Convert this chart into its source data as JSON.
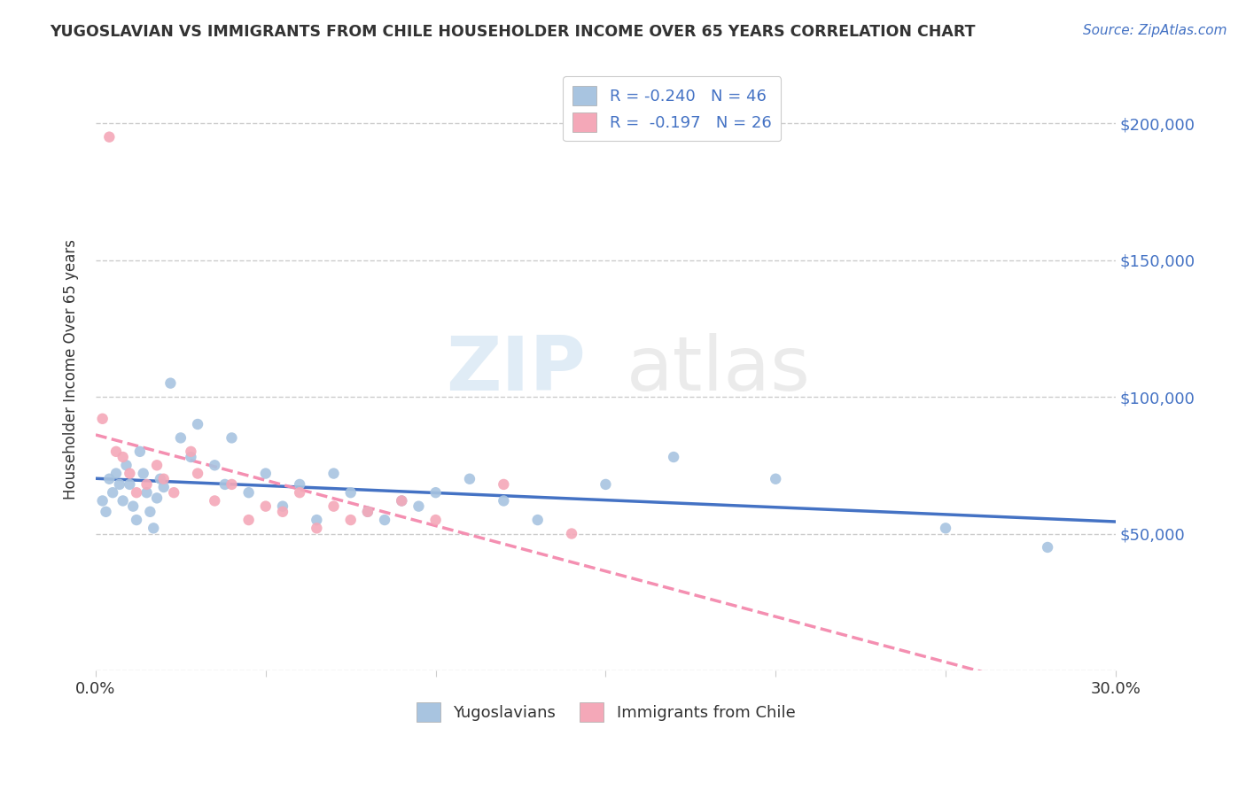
{
  "title": "YUGOSLAVIAN VS IMMIGRANTS FROM CHILE HOUSEHOLDER INCOME OVER 65 YEARS CORRELATION CHART",
  "source": "Source: ZipAtlas.com",
  "ylabel": "Householder Income Over 65 years",
  "xlim": [
    0.0,
    30.0
  ],
  "ylim": [
    0,
    220000
  ],
  "yticks": [
    0,
    50000,
    100000,
    150000,
    200000
  ],
  "blue_R": -0.24,
  "blue_N": 46,
  "pink_R": -0.197,
  "pink_N": 26,
  "legend_label_blue": "Yugoslavians",
  "legend_label_pink": "Immigrants from Chile",
  "blue_color": "#a8c4e0",
  "pink_color": "#f4a8b8",
  "blue_line_color": "#4472c4",
  "pink_line_color": "#f48fb1",
  "blue_scatter": [
    [
      0.2,
      62000
    ],
    [
      0.3,
      58000
    ],
    [
      0.4,
      70000
    ],
    [
      0.5,
      65000
    ],
    [
      0.6,
      72000
    ],
    [
      0.7,
      68000
    ],
    [
      0.8,
      62000
    ],
    [
      0.9,
      75000
    ],
    [
      1.0,
      68000
    ],
    [
      1.1,
      60000
    ],
    [
      1.2,
      55000
    ],
    [
      1.3,
      80000
    ],
    [
      1.4,
      72000
    ],
    [
      1.5,
      65000
    ],
    [
      1.6,
      58000
    ],
    [
      1.7,
      52000
    ],
    [
      1.8,
      63000
    ],
    [
      1.9,
      70000
    ],
    [
      2.0,
      67000
    ],
    [
      2.2,
      105000
    ],
    [
      2.5,
      85000
    ],
    [
      2.8,
      78000
    ],
    [
      3.0,
      90000
    ],
    [
      3.5,
      75000
    ],
    [
      3.8,
      68000
    ],
    [
      4.0,
      85000
    ],
    [
      4.5,
      65000
    ],
    [
      5.0,
      72000
    ],
    [
      5.5,
      60000
    ],
    [
      6.0,
      68000
    ],
    [
      6.5,
      55000
    ],
    [
      7.0,
      72000
    ],
    [
      7.5,
      65000
    ],
    [
      8.0,
      58000
    ],
    [
      8.5,
      55000
    ],
    [
      9.0,
      62000
    ],
    [
      9.5,
      60000
    ],
    [
      10.0,
      65000
    ],
    [
      11.0,
      70000
    ],
    [
      12.0,
      62000
    ],
    [
      13.0,
      55000
    ],
    [
      15.0,
      68000
    ],
    [
      17.0,
      78000
    ],
    [
      20.0,
      70000
    ],
    [
      25.0,
      52000
    ],
    [
      28.0,
      45000
    ]
  ],
  "pink_scatter": [
    [
      0.2,
      92000
    ],
    [
      0.4,
      195000
    ],
    [
      0.6,
      80000
    ],
    [
      0.8,
      78000
    ],
    [
      1.0,
      72000
    ],
    [
      1.2,
      65000
    ],
    [
      1.5,
      68000
    ],
    [
      1.8,
      75000
    ],
    [
      2.0,
      70000
    ],
    [
      2.3,
      65000
    ],
    [
      2.8,
      80000
    ],
    [
      3.0,
      72000
    ],
    [
      3.5,
      62000
    ],
    [
      4.0,
      68000
    ],
    [
      4.5,
      55000
    ],
    [
      5.0,
      60000
    ],
    [
      5.5,
      58000
    ],
    [
      6.0,
      65000
    ],
    [
      6.5,
      52000
    ],
    [
      7.0,
      60000
    ],
    [
      7.5,
      55000
    ],
    [
      8.0,
      58000
    ],
    [
      9.0,
      62000
    ],
    [
      10.0,
      55000
    ],
    [
      12.0,
      68000
    ],
    [
      14.0,
      50000
    ]
  ],
  "watermark_zip": "ZIP",
  "watermark_atlas": "atlas",
  "background_color": "#ffffff",
  "grid_color": "#cccccc"
}
